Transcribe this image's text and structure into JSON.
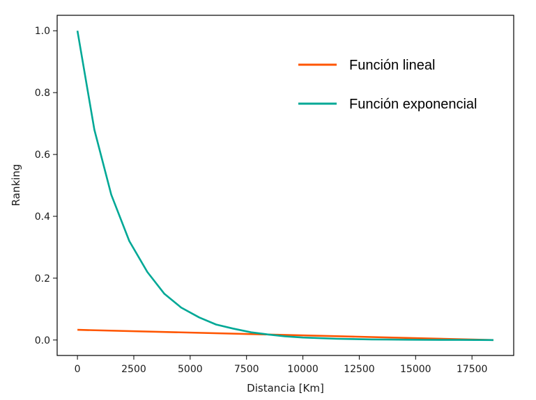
{
  "chart_data": {
    "type": "line",
    "title": "",
    "xlabel": "Distancia [Km]",
    "ylabel": "Ranking",
    "xlim": [
      -900,
      19350
    ],
    "ylim": [
      -0.05,
      1.05
    ],
    "x_ticks": [
      0,
      2500,
      5000,
      7500,
      10000,
      12500,
      15000,
      17500
    ],
    "x_tick_labels": [
      "0",
      "2500",
      "5000",
      "7500",
      "10000",
      "12500",
      "15000",
      "17500"
    ],
    "y_ticks": [
      0.0,
      0.2,
      0.4,
      0.6,
      0.8,
      1.0
    ],
    "y_tick_labels": [
      "0.0",
      "0.2",
      "0.4",
      "0.6",
      "0.8",
      "1.0"
    ],
    "grid": false,
    "legend_position": "top-right",
    "series": [
      {
        "name": "Función lineal",
        "color": "#ff5500",
        "x": [
          0,
          18450
        ],
        "y": [
          0.033,
          0.0
        ]
      },
      {
        "name": "Función exponencial",
        "color": "#00a896",
        "x": [
          0,
          750,
          1500,
          2300,
          3100,
          3850,
          4600,
          5400,
          6150,
          6900,
          7700,
          8450,
          9200,
          10000,
          10750,
          11500,
          12300,
          13050,
          13800,
          14600,
          15350,
          16100,
          16900,
          17650,
          18450
        ],
        "y": [
          1.0,
          0.68,
          0.47,
          0.32,
          0.22,
          0.15,
          0.105,
          0.073,
          0.05,
          0.037,
          0.025,
          0.018,
          0.012,
          0.008,
          0.006,
          0.004,
          0.003,
          0.002,
          0.0015,
          0.001,
          0.0007,
          0.0005,
          0.0003,
          0.0002,
          0.0
        ]
      }
    ]
  }
}
